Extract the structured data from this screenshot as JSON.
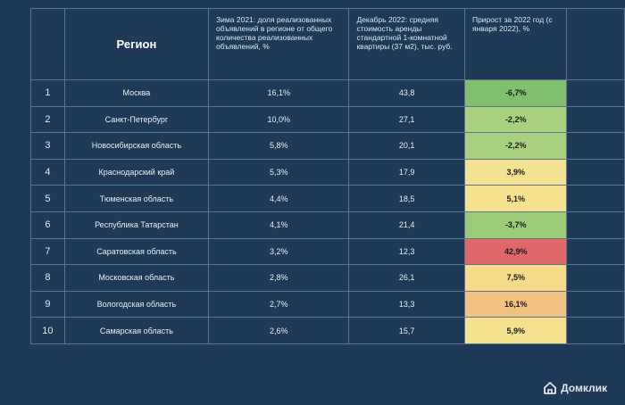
{
  "table": {
    "headers": {
      "region": "Регион",
      "share": "Зима 2021: доля реализованных объявлений в регионе от общего количества реализованных объявлений, %",
      "rent": "Декабрь 2022: средняя стоимость аренды стандартной 1-комнатной квартиры (37 м2), тыс. руб.",
      "growth": "Прирост за 2022 год (с января 2022), %"
    },
    "rows": [
      {
        "num": "1",
        "region": "Москва",
        "share": "16,1%",
        "rent": "43,8",
        "growth": "-6,7%",
        "color": "#7fbf6e"
      },
      {
        "num": "2",
        "region": "Санкт-Петербург",
        "share": "10,0%",
        "rent": "27,1",
        "growth": "-2,2%",
        "color": "#a9d07e"
      },
      {
        "num": "3",
        "region": "Новосибирская область",
        "share": "5,8%",
        "rent": "20,1",
        "growth": "-2,2%",
        "color": "#a9d07e"
      },
      {
        "num": "4",
        "region": "Краснодарский край",
        "share": "5,3%",
        "rent": "17,9",
        "growth": "3,9%",
        "color": "#f3e390"
      },
      {
        "num": "5",
        "region": "Тюменская область",
        "share": "4,4%",
        "rent": "18,5",
        "growth": "5,1%",
        "color": "#f5e18e"
      },
      {
        "num": "6",
        "region": "Республика Татарстан",
        "share": "4,1%",
        "rent": "21,4",
        "growth": "-3,7%",
        "color": "#9ccb78"
      },
      {
        "num": "7",
        "region": "Саратовская область",
        "share": "3,2%",
        "rent": "12,3",
        "growth": "42,9%",
        "color": "#e0676a"
      },
      {
        "num": "8",
        "region": "Московская область",
        "share": "2,8%",
        "rent": "26,1",
        "growth": "7,5%",
        "color": "#f6dc8a"
      },
      {
        "num": "9",
        "region": "Вологодская область",
        "share": "2,7%",
        "rent": "13,3",
        "growth": "16,1%",
        "color": "#f2c283"
      },
      {
        "num": "10",
        "region": "Самарская область",
        "share": "2,6%",
        "rent": "15,7",
        "growth": "5,9%",
        "color": "#f5e18e"
      }
    ]
  },
  "logo": {
    "text": "Домклик",
    "icon": "home-icon"
  },
  "colors": {
    "background": "#1e3a56",
    "border": "#5b7591"
  }
}
